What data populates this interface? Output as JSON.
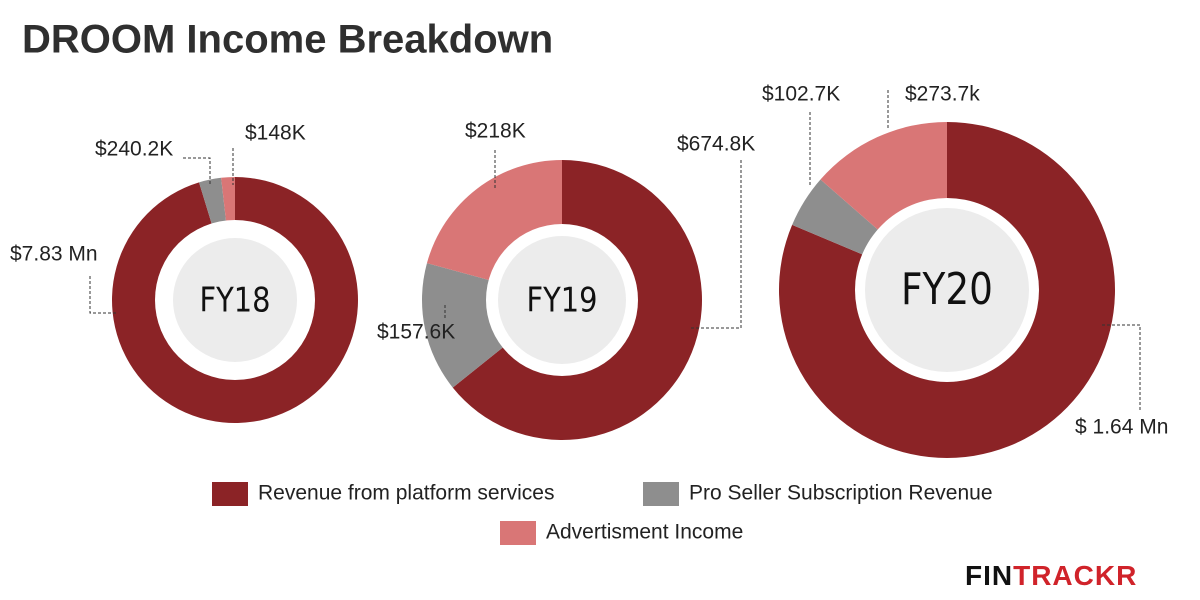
{
  "title": "DROOM Income Breakdown",
  "brand": "FINTRACKR",
  "chart_data": [
    {
      "type": "pie",
      "title": "FY18",
      "categories": [
        "Revenue from platform services",
        "Pro Seller Subscription Revenue",
        "Advertisment Income"
      ],
      "values": [
        7830000,
        240200,
        148000
      ],
      "value_labels": [
        "$7.83 Mn",
        "$240.2K",
        "$148K"
      ],
      "colors": [
        "#8b2326",
        "#8e8e8e",
        "#d97676"
      ]
    },
    {
      "type": "pie",
      "title": "FY19",
      "categories": [
        "Revenue from platform services",
        "Pro Seller Subscription Revenue",
        "Advertisment Income"
      ],
      "values": [
        674800,
        157600,
        218000
      ],
      "value_labels": [
        "$674.8K",
        "$157.6K",
        "$218K"
      ],
      "colors": [
        "#8b2326",
        "#8e8e8e",
        "#d97676"
      ]
    },
    {
      "type": "pie",
      "title": "FY20",
      "categories": [
        "Revenue from platform services",
        "Pro Seller Subscription Revenue",
        "Advertisment Income"
      ],
      "values": [
        1640000,
        102700,
        273700
      ],
      "value_labels": [
        "$ 1.64 Mn",
        "$102.7K",
        "$273.7k"
      ],
      "colors": [
        "#8b2326",
        "#8e8e8e",
        "#d97676"
      ]
    }
  ]
}
